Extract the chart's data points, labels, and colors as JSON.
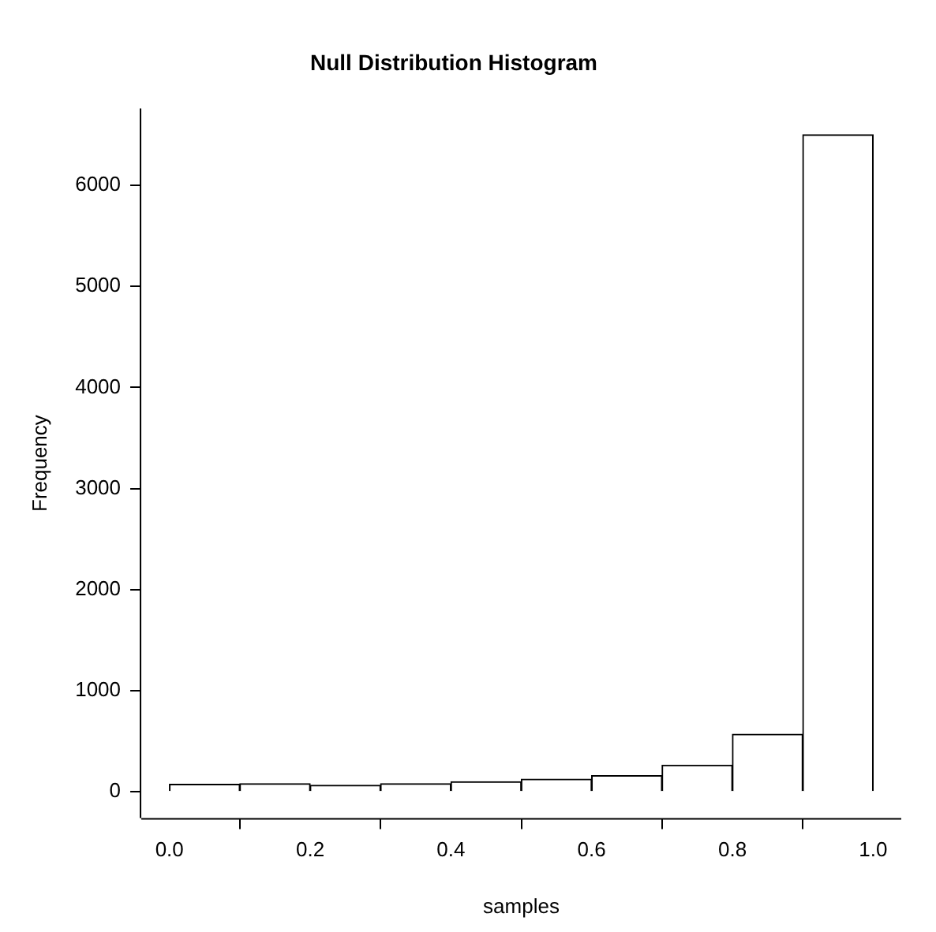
{
  "chart_data": {
    "type": "histogram",
    "title": "Null Distribution Histogram",
    "xlabel": "samples",
    "ylabel": "Frequency",
    "bins": [
      0,
      0.1,
      0.2,
      0.3,
      0.4,
      0.5,
      0.6,
      0.7,
      0.8,
      0.9,
      1.0
    ],
    "values": [
      75,
      80,
      65,
      80,
      100,
      125,
      160,
      265,
      570,
      6500
    ],
    "color": "#ffffff",
    "xlim": [
      -0.04,
      1.04
    ],
    "xticks": [
      {
        "value": 0,
        "label": "0.0"
      },
      0.2,
      0.4,
      0.6,
      0.8,
      {
        "value": 1,
        "label": "1.0"
      }
    ],
    "ylim": [
      -260,
      6760
    ],
    "yticks": [
      0,
      1000,
      2000,
      3000,
      4000,
      5000,
      6000
    ]
  }
}
